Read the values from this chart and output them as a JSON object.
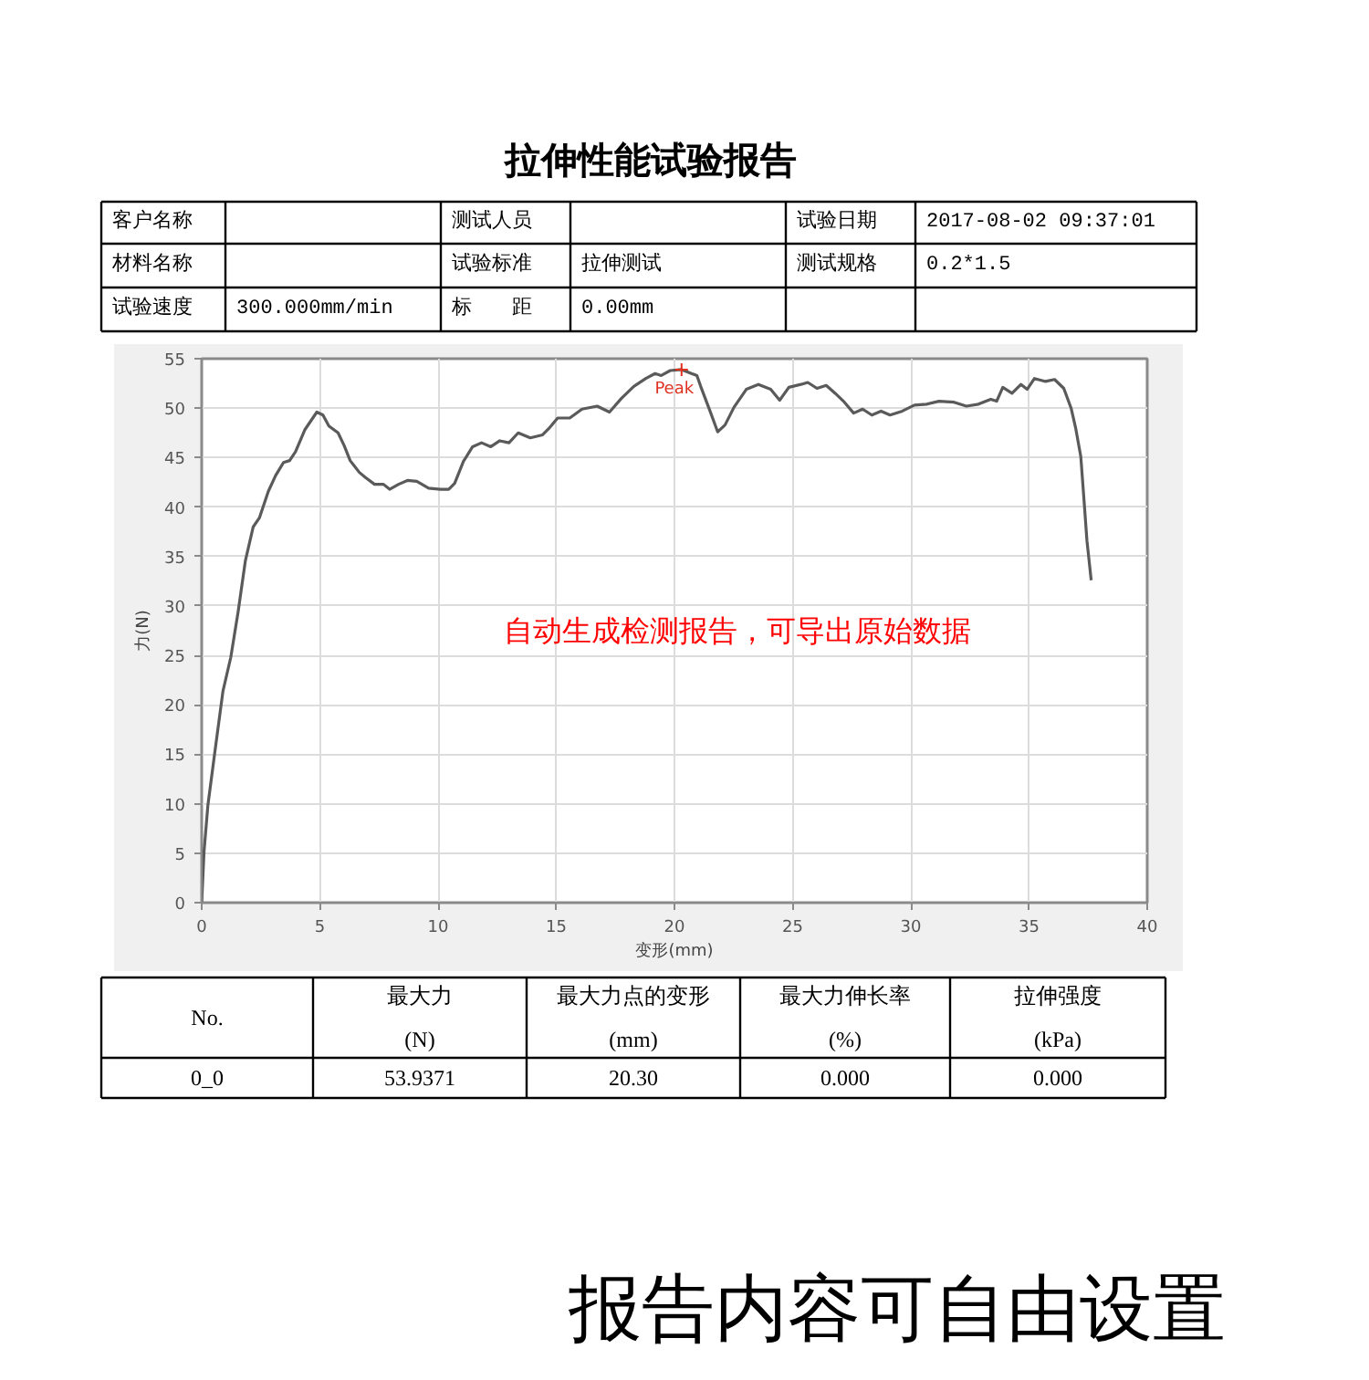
{
  "chart_data": {
    "type": "line",
    "title": "拉伸性能试验报告",
    "xlabel": "变形(mm)",
    "ylabel": "力(N)",
    "x": [
      0,
      0.1,
      0.26,
      0.56,
      0.9,
      1.23,
      1.54,
      1.85,
      2.18,
      2.44,
      2.82,
      3.13,
      3.46,
      3.72,
      3.97,
      4.36,
      4.87,
      5.13,
      5.38,
      5.77,
      6.03,
      6.28,
      6.67,
      6.92,
      7.31,
      7.69,
      7.95,
      8.33,
      8.72,
      9.1,
      9.6,
      10.1,
      10.45,
      10.7,
      11.07,
      11.46,
      11.84,
      12.23,
      12.61,
      13.0,
      13.39,
      13.9,
      14.42,
      14.67,
      15.06,
      15.57,
      16.09,
      16.73,
      17.25,
      17.76,
      18.28,
      18.79,
      19.18,
      19.44,
      19.82,
      20.3,
      20.72,
      20.95,
      21.11,
      21.49,
      21.83,
      22.14,
      22.52,
      23.04,
      23.55,
      24.07,
      24.45,
      24.84,
      25.35,
      25.64,
      26.03,
      26.42,
      26.8,
      27.19,
      27.58,
      27.96,
      28.35,
      28.74,
      29.12,
      29.64,
      30.15,
      30.67,
      31.19,
      31.83,
      32.35,
      32.86,
      33.38,
      33.63,
      33.89,
      34.28,
      34.66,
      34.92,
      35.23,
      35.7,
      36.08,
      36.47,
      36.78,
      36.98,
      37.19,
      37.32,
      37.45,
      37.63
    ],
    "series": [
      {
        "color": "#5a5a5a",
        "values": [
          0,
          5.2,
          9.8,
          15.3,
          21.4,
          24.8,
          29.4,
          34.6,
          38.0,
          38.9,
          41.6,
          43.2,
          44.5,
          44.7,
          45.6,
          47.8,
          49.6,
          49.3,
          48.2,
          47.5,
          46.2,
          44.7,
          43.5,
          43.0,
          42.3,
          42.3,
          41.8,
          42.3,
          42.7,
          42.6,
          41.9,
          41.8,
          41.8,
          42.4,
          44.6,
          46.1,
          46.5,
          46.1,
          46.7,
          46.5,
          47.5,
          47.0,
          47.3,
          47.9,
          49.0,
          49.0,
          49.9,
          50.2,
          49.6,
          51.0,
          52.2,
          53.0,
          53.5,
          53.3,
          53.8,
          53.9,
          53.5,
          53.3,
          52.2,
          49.8,
          47.6,
          48.3,
          50.1,
          51.9,
          52.4,
          51.9,
          50.8,
          52.1,
          52.4,
          52.6,
          52.0,
          52.3,
          51.5,
          50.6,
          49.5,
          49.9,
          49.3,
          49.7,
          49.3,
          49.7,
          50.3,
          50.4,
          50.7,
          50.6,
          50.2,
          50.4,
          50.9,
          50.7,
          52.1,
          51.5,
          52.4,
          51.9,
          53.0,
          52.7,
          52.9,
          52.0,
          50.0,
          47.9,
          45.1,
          40.9,
          36.6,
          32.6
        ]
      }
    ],
    "xlim": [
      0,
      40
    ],
    "xticks": [
      0,
      5,
      10,
      15,
      20,
      25,
      30,
      35,
      40
    ],
    "ylim": [
      0,
      55
    ],
    "yticks": [
      0,
      5,
      10,
      15,
      20,
      25,
      30,
      35,
      40,
      45,
      50,
      55
    ],
    "grid": true,
    "annotations": [
      {
        "text": "Peak",
        "x": 20.3,
        "y": 53.9
      },
      "自动生成检测报告，可导出原始数据",
      "客户名称",
      "测试人员",
      "试验日期",
      "2017-08-02 09:37:01",
      "材料名称",
      "试验标准",
      "拉伸测试",
      "测试规格",
      "0.2*1.5",
      "试验速度",
      "300.000mm/min",
      "标　　距",
      "0.00mm",
      "No.",
      "最大力\n(N)",
      "最大力点的变形\n(mm)",
      "最大力伸长率\n(%)",
      "拉伸强度\n(kPa)",
      "0_0",
      "53.9371",
      "20.30",
      "0.000",
      "0.000",
      "报告内容可自由设置"
    ]
  }
}
